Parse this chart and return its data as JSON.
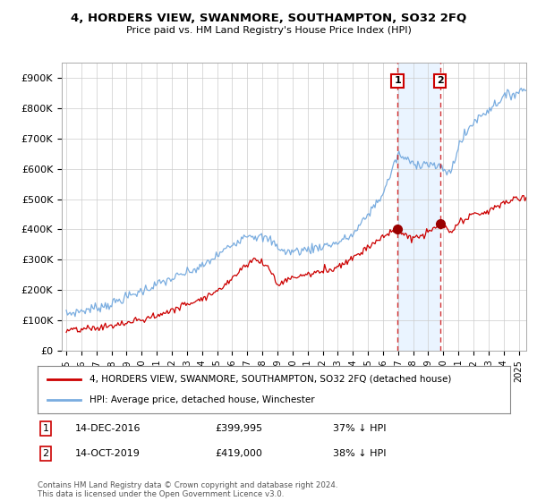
{
  "title": "4, HORDERS VIEW, SWANMORE, SOUTHAMPTON, SO32 2FQ",
  "subtitle": "Price paid vs. HM Land Registry's House Price Index (HPI)",
  "ylabel_ticks": [
    "£0",
    "£100K",
    "£200K",
    "£300K",
    "£400K",
    "£500K",
    "£600K",
    "£700K",
    "£800K",
    "£900K"
  ],
  "ytick_values": [
    0,
    100000,
    200000,
    300000,
    400000,
    500000,
    600000,
    700000,
    800000,
    900000
  ],
  "ylim": [
    0,
    950000
  ],
  "legend_entry1": "4, HORDERS VIEW, SWANMORE, SOUTHAMPTON, SO32 2FQ (detached house)",
  "legend_entry2": "HPI: Average price, detached house, Winchester",
  "marker1_date": 2016.96,
  "marker1_price": 399995,
  "marker2_date": 2019.79,
  "marker2_price": 419000,
  "footer": "Contains HM Land Registry data © Crown copyright and database right 2024.\nThis data is licensed under the Open Government Licence v3.0.",
  "line_color_red": "#cc0000",
  "line_color_blue": "#7aade0",
  "shade_color": "#ddeeff",
  "background_color": "#ffffff",
  "grid_color": "#cccccc"
}
